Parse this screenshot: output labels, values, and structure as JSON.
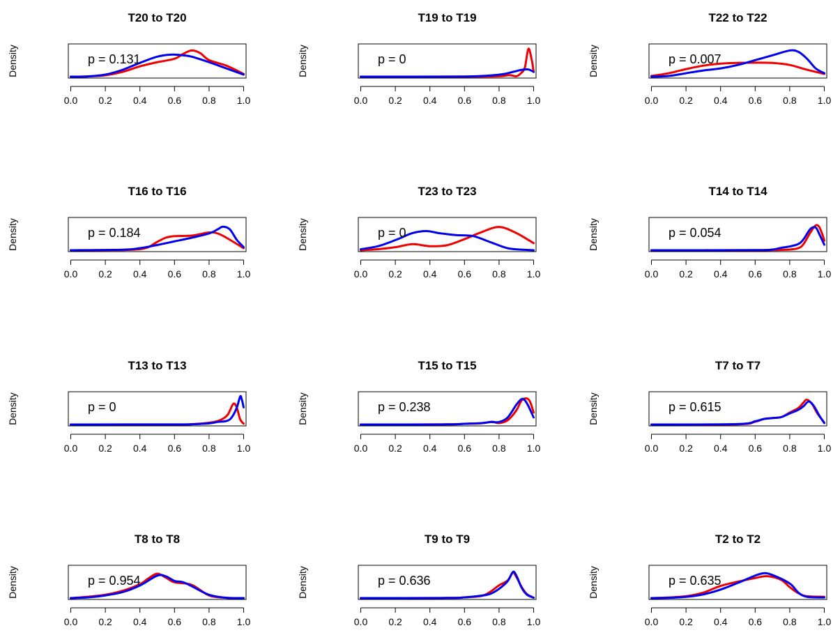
{
  "ylabel": "Density",
  "series_colors": {
    "red": "#ee0000",
    "blue": "#0000ee"
  },
  "chart_data": [
    {
      "type": "line",
      "title": "T20 to T20",
      "p_label": "p = 0.131",
      "ylabel": "Density",
      "xlim": [
        0,
        1
      ],
      "ylim": [
        0,
        2.2
      ],
      "x_ticks": [
        "0.0",
        "0.2",
        "0.4",
        "0.6",
        "0.8",
        "1.0"
      ],
      "series": [
        {
          "color": "red",
          "x": [
            0,
            0.1,
            0.2,
            0.3,
            0.4,
            0.5,
            0.6,
            0.65,
            0.7,
            0.75,
            0.8,
            0.9,
            1.0
          ],
          "y": [
            0,
            0.02,
            0.1,
            0.35,
            0.75,
            1.05,
            1.3,
            1.65,
            1.9,
            1.7,
            1.2,
            0.8,
            0.2
          ]
        },
        {
          "color": "blue",
          "x": [
            0,
            0.1,
            0.2,
            0.3,
            0.4,
            0.5,
            0.58,
            0.65,
            0.7,
            0.8,
            0.9,
            1.0
          ],
          "y": [
            0,
            0.02,
            0.15,
            0.5,
            1.0,
            1.45,
            1.6,
            1.55,
            1.45,
            1.05,
            0.6,
            0.15
          ]
        }
      ]
    },
    {
      "type": "line",
      "title": "T19 to T19",
      "p_label": "p = 0",
      "ylabel": "Density",
      "xlim": [
        0,
        1
      ],
      "ylim": [
        0,
        3.8
      ],
      "x_ticks": [
        "0.0",
        "0.2",
        "0.4",
        "0.6",
        "0.8",
        "1.0"
      ],
      "series": [
        {
          "color": "red",
          "x": [
            0,
            0.6,
            0.8,
            0.86,
            0.9,
            0.93,
            0.95,
            0.97,
            0.99,
            1.0
          ],
          "y": [
            0,
            0,
            0.05,
            0.2,
            0.05,
            0.5,
            1.2,
            3.5,
            2.0,
            0.6
          ]
        },
        {
          "color": "blue",
          "x": [
            0,
            0.6,
            0.8,
            0.88,
            0.93,
            0.97,
            1.0
          ],
          "y": [
            0,
            0.02,
            0.25,
            0.6,
            0.85,
            0.9,
            0.6
          ]
        }
      ]
    },
    {
      "type": "line",
      "title": "T22 to T22",
      "p_label": "p = 0.007",
      "ylabel": "Density",
      "xlim": [
        0,
        1
      ],
      "ylim": [
        0,
        2.2
      ],
      "x_ticks": [
        "0.0",
        "0.2",
        "0.4",
        "0.6",
        "0.8",
        "1.0"
      ],
      "series": [
        {
          "color": "red",
          "x": [
            0,
            0.1,
            0.2,
            0.3,
            0.4,
            0.5,
            0.6,
            0.7,
            0.8,
            0.9,
            1.0
          ],
          "y": [
            0.05,
            0.25,
            0.55,
            0.8,
            0.95,
            1.0,
            1.02,
            1.0,
            0.85,
            0.5,
            0.2
          ]
        },
        {
          "color": "blue",
          "x": [
            0,
            0.1,
            0.2,
            0.3,
            0.4,
            0.5,
            0.6,
            0.7,
            0.8,
            0.85,
            0.9,
            0.95,
            1.0
          ],
          "y": [
            0,
            0.05,
            0.25,
            0.45,
            0.6,
            0.85,
            1.2,
            1.55,
            1.9,
            1.8,
            1.3,
            0.6,
            0.25
          ]
        }
      ]
    },
    {
      "type": "line",
      "title": "T16 to T16",
      "p_label": "p = 0.184",
      "ylabel": "Density",
      "xlim": [
        0,
        1
      ],
      "ylim": [
        0,
        2.9
      ],
      "x_ticks": [
        "0.0",
        "0.2",
        "0.4",
        "0.6",
        "0.8",
        "1.0"
      ],
      "series": [
        {
          "color": "red",
          "x": [
            0,
            0.3,
            0.4,
            0.45,
            0.5,
            0.55,
            0.6,
            0.7,
            0.8,
            0.85,
            0.9,
            1.0
          ],
          "y": [
            0,
            0.02,
            0.1,
            0.3,
            0.8,
            1.2,
            1.35,
            1.4,
            1.7,
            1.6,
            1.2,
            0.2
          ]
        },
        {
          "color": "blue",
          "x": [
            0,
            0.3,
            0.4,
            0.5,
            0.6,
            0.7,
            0.8,
            0.85,
            0.88,
            0.92,
            0.96,
            1.0
          ],
          "y": [
            0,
            0.05,
            0.2,
            0.5,
            0.85,
            1.2,
            1.6,
            2.0,
            2.25,
            2.0,
            1.0,
            0.3
          ]
        }
      ]
    },
    {
      "type": "line",
      "title": "T23 to T23",
      "p_label": "p = 0",
      "ylabel": "Density",
      "xlim": [
        0,
        1
      ],
      "ylim": [
        0,
        1.5
      ],
      "x_ticks": [
        "0.0",
        "0.2",
        "0.4",
        "0.6",
        "0.8",
        "1.0"
      ],
      "series": [
        {
          "color": "red",
          "x": [
            0,
            0.1,
            0.2,
            0.3,
            0.4,
            0.5,
            0.6,
            0.7,
            0.8,
            0.9,
            1.0
          ],
          "y": [
            0,
            0.05,
            0.15,
            0.3,
            0.2,
            0.25,
            0.55,
            0.9,
            1.15,
            0.85,
            0.35
          ]
        },
        {
          "color": "blue",
          "x": [
            0,
            0.1,
            0.2,
            0.3,
            0.38,
            0.45,
            0.55,
            0.65,
            0.75,
            0.85,
            0.95,
            1.0
          ],
          "y": [
            0.05,
            0.2,
            0.5,
            0.85,
            0.95,
            0.85,
            0.75,
            0.7,
            0.4,
            0.1,
            0.02,
            0
          ]
        }
      ]
    },
    {
      "type": "line",
      "title": "T14 to T14",
      "p_label": "p = 0.054",
      "ylabel": "Density",
      "xlim": [
        0,
        1
      ],
      "ylim": [
        0,
        4.4
      ],
      "x_ticks": [
        "0.0",
        "0.2",
        "0.4",
        "0.6",
        "0.8",
        "1.0"
      ],
      "series": [
        {
          "color": "red",
          "x": [
            0,
            0.6,
            0.7,
            0.8,
            0.85,
            0.88,
            0.92,
            0.95,
            0.97,
            0.99,
            1.0
          ],
          "y": [
            0,
            0,
            0.02,
            0.1,
            0.3,
            0.9,
            2.6,
            3.6,
            3.4,
            2.2,
            1.4
          ]
        },
        {
          "color": "blue",
          "x": [
            0,
            0.6,
            0.7,
            0.75,
            0.8,
            0.85,
            0.88,
            0.92,
            0.95,
            0.97,
            1.0
          ],
          "y": [
            0,
            0.02,
            0.1,
            0.35,
            0.55,
            0.9,
            1.6,
            3.1,
            3.3,
            2.4,
            0.8
          ]
        }
      ]
    },
    {
      "type": "line",
      "title": "T13 to T13",
      "p_label": "p = 0",
      "ylabel": "Density",
      "xlim": [
        0,
        1
      ],
      "ylim": [
        0,
        5.3
      ],
      "x_ticks": [
        "0.0",
        "0.2",
        "0.4",
        "0.6",
        "0.8",
        "1.0"
      ],
      "series": [
        {
          "color": "red",
          "x": [
            0,
            0.6,
            0.7,
            0.8,
            0.85,
            0.88,
            0.91,
            0.94,
            0.96,
            0.98,
            1.0
          ],
          "y": [
            0,
            0,
            0.05,
            0.3,
            0.6,
            1.0,
            1.8,
            3.6,
            3.0,
            0.9,
            0.15
          ]
        },
        {
          "color": "blue",
          "x": [
            0,
            0.6,
            0.7,
            0.8,
            0.85,
            0.9,
            0.93,
            0.96,
            0.98,
            0.99,
            1.0
          ],
          "y": [
            0,
            0.02,
            0.05,
            0.2,
            0.45,
            0.6,
            1.2,
            2.9,
            4.9,
            4.3,
            3.0
          ]
        }
      ]
    },
    {
      "type": "line",
      "title": "T15 to T15",
      "p_label": "p = 0.238",
      "ylabel": "Density",
      "xlim": [
        0,
        1
      ],
      "ylim": [
        0,
        4.3
      ],
      "x_ticks": [
        "0.0",
        "0.2",
        "0.4",
        "0.6",
        "0.8",
        "1.0"
      ],
      "series": [
        {
          "color": "red",
          "x": [
            0,
            0.5,
            0.6,
            0.68,
            0.72,
            0.76,
            0.8,
            0.85,
            0.9,
            0.93,
            0.96,
            0.98,
            1.0
          ],
          "y": [
            0,
            0.02,
            0.1,
            0.15,
            0.25,
            0.4,
            0.2,
            0.6,
            2.0,
            3.4,
            3.7,
            3.2,
            1.7
          ]
        },
        {
          "color": "blue",
          "x": [
            0,
            0.5,
            0.6,
            0.7,
            0.75,
            0.8,
            0.85,
            0.9,
            0.93,
            0.95,
            0.97,
            1.0
          ],
          "y": [
            0,
            0.02,
            0.1,
            0.2,
            0.35,
            0.35,
            1.0,
            2.8,
            3.6,
            3.4,
            2.6,
            1.0
          ]
        }
      ]
    },
    {
      "type": "line",
      "title": "T7 to T7",
      "p_label": "p = 0.615",
      "ylabel": "Density",
      "xlim": [
        0,
        1
      ],
      "ylim": [
        0,
        3.3
      ],
      "x_ticks": [
        "0.0",
        "0.2",
        "0.4",
        "0.6",
        "0.8",
        "1.0"
      ],
      "series": [
        {
          "color": "red",
          "x": [
            0,
            0.5,
            0.6,
            0.65,
            0.7,
            0.75,
            0.8,
            0.85,
            0.88,
            0.9,
            0.93,
            0.96,
            1.0
          ],
          "y": [
            0,
            0.02,
            0.3,
            0.6,
            0.7,
            0.8,
            1.3,
            1.8,
            2.4,
            2.7,
            2.2,
            1.2,
            0.2
          ]
        },
        {
          "color": "blue",
          "x": [
            0,
            0.5,
            0.6,
            0.65,
            0.7,
            0.75,
            0.8,
            0.85,
            0.88,
            0.91,
            0.94,
            0.97,
            1.0
          ],
          "y": [
            0,
            0.05,
            0.35,
            0.6,
            0.7,
            0.8,
            1.2,
            1.6,
            2.0,
            2.5,
            2.0,
            1.0,
            0.15
          ]
        }
      ]
    },
    {
      "type": "line",
      "title": "T8 to T8",
      "p_label": "p = 0.954",
      "ylabel": "Density",
      "xlim": [
        0,
        1
      ],
      "ylim": [
        0,
        2.3
      ],
      "x_ticks": [
        "0.0",
        "0.2",
        "0.4",
        "0.6",
        "0.8",
        "1.0"
      ],
      "series": [
        {
          "color": "red",
          "x": [
            0,
            0.1,
            0.2,
            0.3,
            0.4,
            0.45,
            0.5,
            0.55,
            0.6,
            0.7,
            0.8,
            0.9,
            1.0
          ],
          "y": [
            0,
            0.1,
            0.25,
            0.55,
            1.05,
            1.5,
            1.85,
            1.55,
            1.2,
            1.0,
            0.2,
            0.02,
            0
          ]
        },
        {
          "color": "blue",
          "x": [
            0,
            0.1,
            0.2,
            0.3,
            0.4,
            0.5,
            0.55,
            0.6,
            0.65,
            0.7,
            0.8,
            0.9,
            1.0
          ],
          "y": [
            0,
            0.05,
            0.2,
            0.45,
            0.95,
            1.7,
            1.65,
            1.3,
            1.2,
            0.9,
            0.25,
            0.02,
            0
          ]
        }
      ]
    },
    {
      "type": "line",
      "title": "T9 to T9",
      "p_label": "p = 0.636",
      "ylabel": "Density",
      "xlim": [
        0,
        1
      ],
      "ylim": [
        0,
        4.3
      ],
      "x_ticks": [
        "0.0",
        "0.2",
        "0.4",
        "0.6",
        "0.8",
        "1.0"
      ],
      "series": [
        {
          "color": "red",
          "x": [
            0,
            0.5,
            0.6,
            0.7,
            0.75,
            0.8,
            0.85,
            0.88,
            0.9,
            0.93,
            0.96,
            1.0
          ],
          "y": [
            0,
            0.02,
            0.1,
            0.3,
            0.9,
            1.8,
            2.5,
            3.6,
            3.0,
            1.6,
            0.6,
            0.05
          ]
        },
        {
          "color": "blue",
          "x": [
            0,
            0.5,
            0.6,
            0.7,
            0.75,
            0.8,
            0.85,
            0.88,
            0.9,
            0.93,
            0.96,
            1.0
          ],
          "y": [
            0,
            0.02,
            0.1,
            0.35,
            0.6,
            1.3,
            2.4,
            3.7,
            3.2,
            1.5,
            0.5,
            0.05
          ]
        }
      ]
    },
    {
      "type": "line",
      "title": "T2 to T2",
      "p_label": "p = 0.635",
      "ylabel": "Density",
      "xlim": [
        0,
        1
      ],
      "ylim": [
        0,
        2.5
      ],
      "x_ticks": [
        "0.0",
        "0.2",
        "0.4",
        "0.6",
        "0.8",
        "1.0"
      ],
      "series": [
        {
          "color": "red",
          "x": [
            0,
            0.1,
            0.2,
            0.3,
            0.4,
            0.5,
            0.6,
            0.67,
            0.75,
            0.8,
            0.85,
            0.9,
            1.0
          ],
          "y": [
            0,
            0.05,
            0.15,
            0.45,
            1.0,
            1.35,
            1.65,
            1.8,
            1.5,
            0.9,
            0.4,
            0.15,
            0.1
          ]
        },
        {
          "color": "blue",
          "x": [
            0,
            0.1,
            0.2,
            0.3,
            0.4,
            0.5,
            0.6,
            0.65,
            0.7,
            0.8,
            0.85,
            0.9,
            1.0
          ],
          "y": [
            0,
            0.02,
            0.1,
            0.3,
            0.7,
            1.25,
            1.85,
            2.05,
            1.9,
            1.2,
            0.45,
            0.1,
            0.05
          ]
        }
      ]
    }
  ]
}
